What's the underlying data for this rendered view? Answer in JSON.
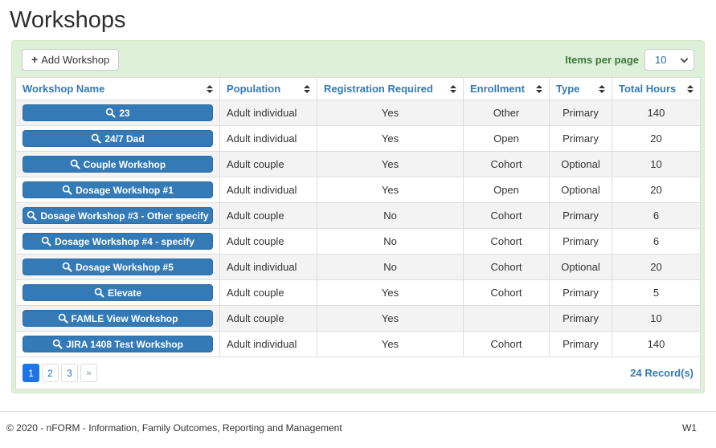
{
  "page": {
    "title": "Workshops"
  },
  "toolbar": {
    "add_icon_glyph": "+",
    "add_label": "Add Workshop",
    "items_per_page_label": "Items per page",
    "items_per_page_value": "10"
  },
  "table": {
    "columns": [
      {
        "key": "name",
        "label": "Workshop Name"
      },
      {
        "key": "population",
        "label": "Population"
      },
      {
        "key": "registration",
        "label": "Registration Required"
      },
      {
        "key": "enrollment",
        "label": "Enrollment"
      },
      {
        "key": "type",
        "label": "Type"
      },
      {
        "key": "hours",
        "label": "Total Hours"
      }
    ],
    "rows": [
      {
        "name": "23",
        "population": "Adult individual",
        "registration_required": "Yes",
        "enrollment": "Other",
        "type": "Primary",
        "total_hours": "140"
      },
      {
        "name": "24/7 Dad",
        "population": "Adult individual",
        "registration_required": "Yes",
        "enrollment": "Open",
        "type": "Primary",
        "total_hours": "20"
      },
      {
        "name": "Couple Workshop",
        "population": "Adult couple",
        "registration_required": "Yes",
        "enrollment": "Cohort",
        "type": "Optional",
        "total_hours": "10"
      },
      {
        "name": "Dosage Workshop #1",
        "population": "Adult individual",
        "registration_required": "Yes",
        "enrollment": "Open",
        "type": "Optional",
        "total_hours": "20"
      },
      {
        "name": "Dosage Workshop #3 - Other specify",
        "population": "Adult couple",
        "registration_required": "No",
        "enrollment": "Cohort",
        "type": "Primary",
        "total_hours": "6"
      },
      {
        "name": "Dosage Workshop #4 - specify",
        "population": "Adult couple",
        "registration_required": "No",
        "enrollment": "Cohort",
        "type": "Primary",
        "total_hours": "6"
      },
      {
        "name": "Dosage Workshop #5",
        "population": "Adult individual",
        "registration_required": "No",
        "enrollment": "Cohort",
        "type": "Optional",
        "total_hours": "20"
      },
      {
        "name": "Elevate",
        "population": "Adult couple",
        "registration_required": "Yes",
        "enrollment": "Cohort",
        "type": "Primary",
        "total_hours": "5"
      },
      {
        "name": "FAMLE View Workshop",
        "population": "Adult couple",
        "registration_required": "Yes",
        "enrollment": "",
        "type": "Primary",
        "total_hours": "10"
      },
      {
        "name": "JIRA 1408 Test Workshop",
        "population": "Adult individual",
        "registration_required": "Yes",
        "enrollment": "Cohort",
        "type": "Primary",
        "total_hours": "140"
      }
    ],
    "record_count": "24 Record(s)"
  },
  "pagination": {
    "pages": [
      "1",
      "2",
      "3"
    ],
    "active": "1",
    "next_label": "»"
  },
  "footer": {
    "copyright": "© 2020 - nFORM - Information, Family Outcomes, Reporting and Management",
    "environment_label": "W1"
  },
  "icons": {
    "add": "plus-icon",
    "workshop_button": "search-icon",
    "column_header": "sort-icon",
    "items_per_page": "chevron-down-icon"
  },
  "colors": {
    "accent_blue": "#337ab7",
    "active_page_blue": "#1f75e8",
    "panel_green": "#dff0d8",
    "panel_border_green": "#d6e9c6",
    "label_green": "#3c763d",
    "row_stripe": "#f3f3f3",
    "table_border": "#dddddd"
  }
}
